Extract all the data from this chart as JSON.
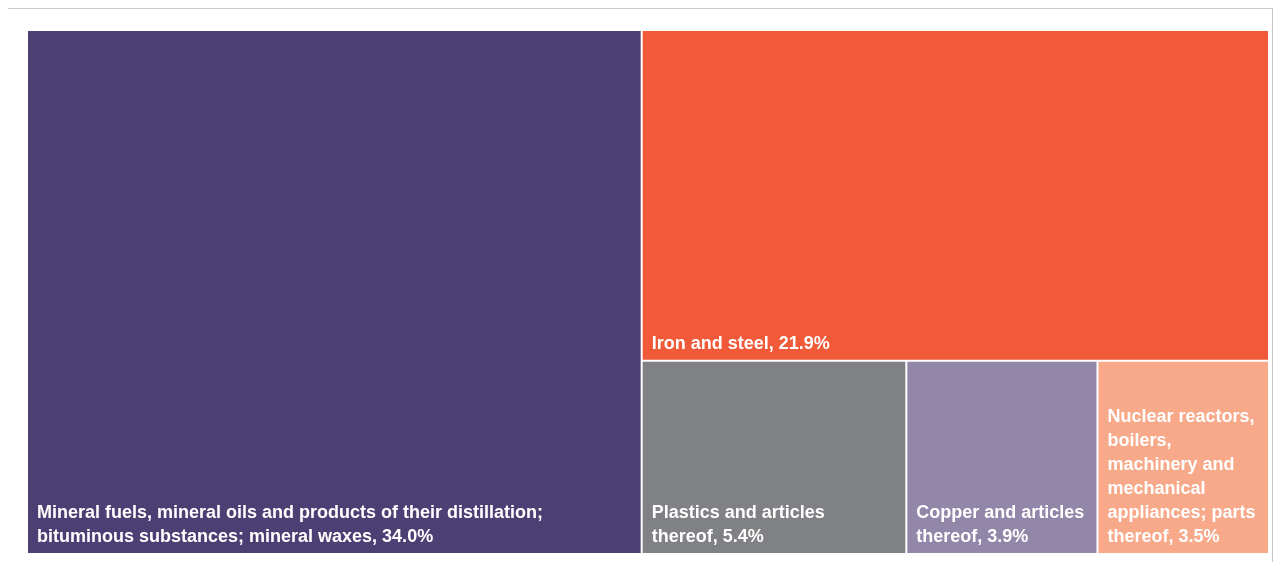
{
  "chart_data": {
    "type": "other",
    "categories": [
      "Mineral fuels, mineral oils and products of their distillation; bituminous substances; mineral waxes",
      "Iron and steel",
      "Plastics and articles thereof",
      "Copper and articles thereof",
      "Nuclear reactors, boilers, machinery and mechanical appliances; parts thereof"
    ],
    "values": [
      34.0,
      21.9,
      5.4,
      3.9,
      3.5
    ],
    "value_labels": [
      ", 34.0%",
      ", 21.9%",
      ", 5.4%",
      ", 3.9%",
      ", 3.5%"
    ],
    "colors": [
      "#4c3f73",
      "#f05a38",
      "#808184",
      "#9287a9",
      "#f7a98a"
    ]
  }
}
